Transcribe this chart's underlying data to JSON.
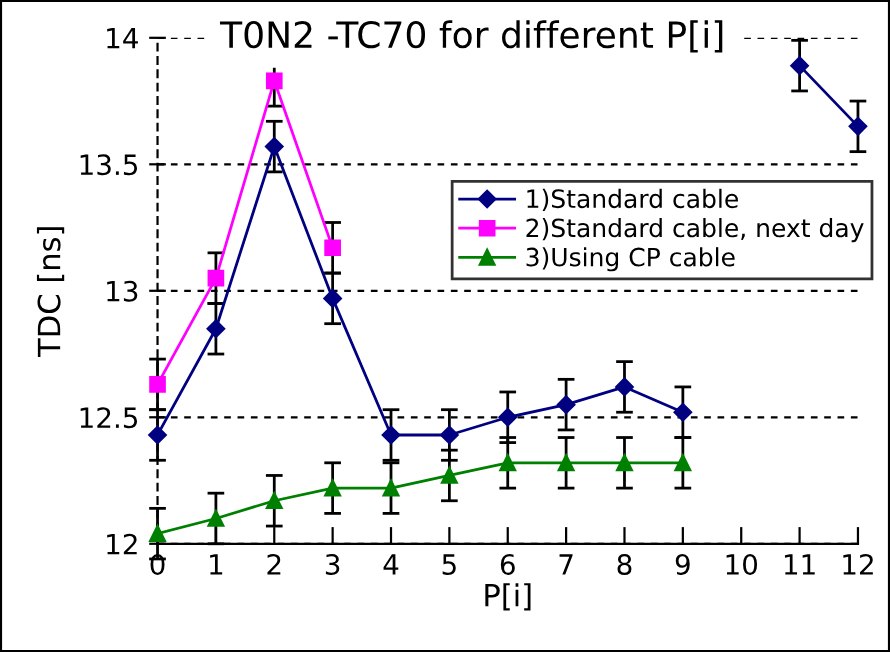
{
  "chart_data": {
    "type": "line",
    "title": "T0N2 -TC70 for different P[i]",
    "xlabel": "P[i]",
    "ylabel": "TDC [ns]",
    "x": [
      0,
      1,
      2,
      3,
      4,
      5,
      6,
      7,
      8,
      9,
      10,
      11,
      12
    ],
    "xlim": [
      0,
      12
    ],
    "xticks": [
      0,
      1,
      2,
      3,
      4,
      5,
      6,
      7,
      8,
      9,
      10,
      11,
      12
    ],
    "ylim": [
      12,
      14
    ],
    "yticks": [
      12,
      12.5,
      13,
      13.5,
      14
    ],
    "grid": "y",
    "legend": "right",
    "line_style": "solid",
    "series": [
      {
        "name": "1)Standard cable",
        "color": "#000080",
        "marker": "diamond",
        "values": [
          12.43,
          12.85,
          13.57,
          12.97,
          12.43,
          12.43,
          12.5,
          12.55,
          12.62,
          12.52,
          null,
          13.89,
          13.65
        ],
        "errors": [
          0.1,
          0.1,
          0.1,
          0.1,
          0.1,
          0.1,
          0.1,
          0.1,
          0.1,
          0.1,
          null,
          0.1,
          0.1
        ]
      },
      {
        "name": "2)Standard cable, next day",
        "color": "#ff00ff",
        "marker": "square",
        "values": [
          12.63,
          13.05,
          13.83,
          13.17,
          null,
          null,
          null,
          null,
          null,
          null,
          null,
          null,
          null
        ],
        "errors": [
          0.1,
          0.1,
          0.1,
          0.1,
          null,
          null,
          null,
          null,
          null,
          null,
          null,
          null,
          null
        ]
      },
      {
        "name": "3)Using CP cable",
        "color": "#008000",
        "marker": "triangle",
        "values": [
          12.04,
          12.1,
          12.17,
          12.22,
          12.22,
          12.27,
          12.32,
          12.32,
          12.32,
          12.32,
          null,
          null,
          null
        ],
        "errors": [
          0.1,
          0.1,
          0.1,
          0.1,
          0.1,
          0.1,
          0.1,
          0.1,
          0.1,
          0.1,
          null,
          null,
          null
        ]
      }
    ]
  }
}
